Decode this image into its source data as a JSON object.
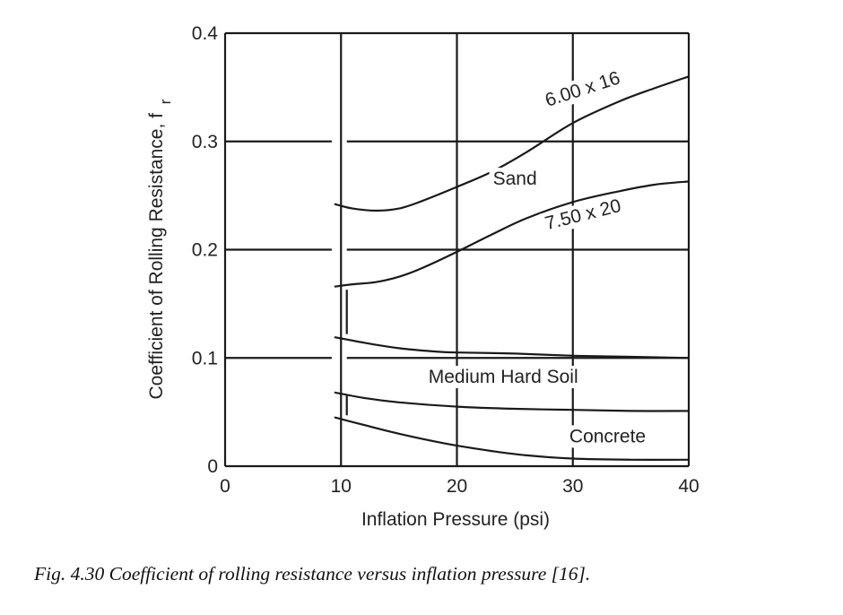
{
  "caption": "Fig. 4.30  Coefficient of rolling resistance versus inflation pressure [16].",
  "chart_data": {
    "type": "line",
    "title": "",
    "xlabel": "Inflation Pressure (psi)",
    "ylabel": "Coefficient of Rolling Resistance, f",
    "ylabel_subscript": "r",
    "xlim": [
      0,
      40
    ],
    "ylim": [
      0,
      0.4
    ],
    "x_ticks": [
      0,
      10,
      20,
      30,
      40
    ],
    "x_tick_labels": [
      "0",
      "10",
      "20",
      "30",
      "40"
    ],
    "y_ticks": [
      0,
      0.1,
      0.2,
      0.3,
      0.4
    ],
    "y_tick_labels": [
      "0",
      "0.1",
      "0.2",
      "0.3",
      "0.4"
    ],
    "grid": true,
    "series": [
      {
        "name": "6.00 x 16",
        "x": [
          9.5,
          11,
          13,
          15,
          17,
          20,
          23,
          26,
          30,
          34,
          37,
          40
        ],
        "y": [
          0.242,
          0.238,
          0.236,
          0.238,
          0.245,
          0.258,
          0.272,
          0.29,
          0.317,
          0.337,
          0.349,
          0.36
        ]
      },
      {
        "name": "7.50 x 20",
        "x": [
          9.5,
          11,
          13,
          15,
          17,
          20,
          23,
          26,
          30,
          34,
          37,
          40
        ],
        "y": [
          0.166,
          0.168,
          0.17,
          0.175,
          0.183,
          0.198,
          0.214,
          0.229,
          0.244,
          0.254,
          0.26,
          0.263
        ]
      },
      {
        "name": "",
        "x": [
          9.5,
          12,
          15,
          18,
          20,
          25,
          30,
          35,
          40
        ],
        "y": [
          0.119,
          0.114,
          0.109,
          0.106,
          0.105,
          0.104,
          0.102,
          0.101,
          0.1
        ]
      },
      {
        "name": "",
        "x": [
          9.5,
          12,
          15,
          20,
          25,
          30,
          35,
          40
        ],
        "y": [
          0.068,
          0.063,
          0.059,
          0.055,
          0.053,
          0.052,
          0.051,
          0.051
        ]
      },
      {
        "name": "",
        "x": [
          9.5,
          12,
          15,
          18,
          20,
          23,
          26,
          30,
          35,
          40
        ],
        "y": [
          0.045,
          0.038,
          0.03,
          0.023,
          0.019,
          0.014,
          0.01,
          0.007,
          0.006,
          0.006
        ]
      }
    ],
    "region_labels": [
      {
        "text": "6.00 x 16",
        "x": 31,
        "y": 0.343,
        "angle": -18
      },
      {
        "text": "Sand",
        "x": 25,
        "y": 0.26,
        "angle": 0
      },
      {
        "text": "7.50 x 20",
        "x": 31,
        "y": 0.227,
        "angle": -14
      },
      {
        "text": "Medium Hard Soil",
        "x": 24,
        "y": 0.077,
        "angle": 0
      },
      {
        "text": "Concrete",
        "x": 33,
        "y": 0.022,
        "angle": 0
      }
    ]
  }
}
